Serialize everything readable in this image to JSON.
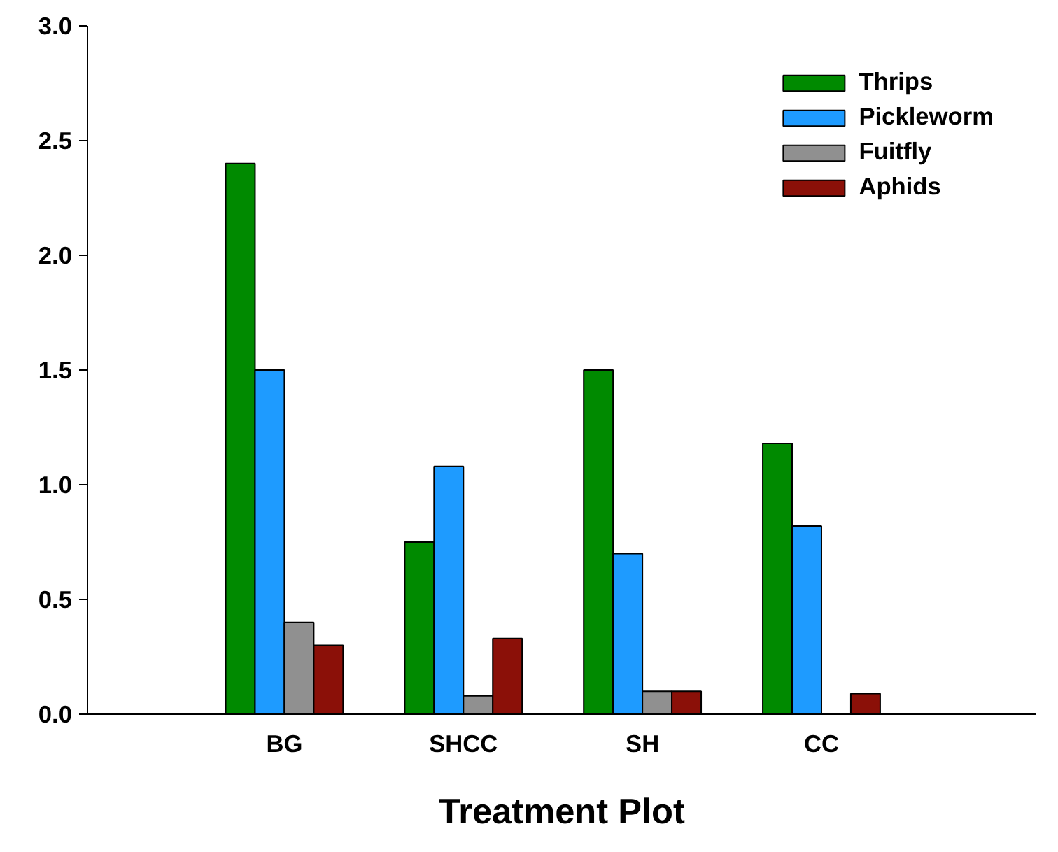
{
  "chart_data": {
    "type": "bar",
    "xlabel": "Treatment Plot",
    "categories": [
      "BG",
      "SHCC",
      "SH",
      "CC"
    ],
    "series": [
      {
        "name": "Thrips",
        "color": "#008a00",
        "values": [
          2.4,
          0.75,
          1.5,
          1.18
        ]
      },
      {
        "name": "Pickleworm",
        "color": "#1e9bff",
        "values": [
          1.5,
          1.08,
          0.7,
          0.82
        ]
      },
      {
        "name": "Fuitfly",
        "color": "#909090",
        "values": [
          0.4,
          0.08,
          0.1,
          null
        ]
      },
      {
        "name": "Aphids",
        "color": "#8b1008",
        "values": [
          0.3,
          0.33,
          0.1,
          0.09
        ]
      }
    ],
    "ylim": [
      0,
      3
    ],
    "yticks": [
      {
        "value": 0,
        "label": "0.0"
      },
      {
        "value": 0.5,
        "label": "0.5"
      },
      {
        "value": 1,
        "label": "1.0"
      },
      {
        "value": 1.5,
        "label": "1.5"
      },
      {
        "value": 2,
        "label": "2.0"
      },
      {
        "value": 2.5,
        "label": "2.5"
      },
      {
        "value": 3,
        "label": "3.0"
      }
    ],
    "grid": false,
    "legend": "top right"
  }
}
